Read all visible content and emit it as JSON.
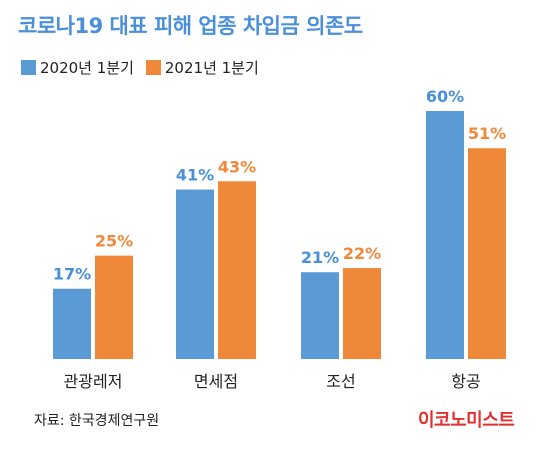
{
  "title": "코로나19 대표 피해 업종 차입금 의존도",
  "source": "자료: 한국경제연구원",
  "brand": "이코노미스트",
  "colors": {
    "series1": "#5b9bd5",
    "series2": "#f0883a",
    "label1": "#4a90d9",
    "label2": "#f0883a",
    "axis_text": "#222222"
  },
  "chart_data": {
    "type": "bar",
    "title": "코로나19 대표 피해 업종 차입금 의존도",
    "categories": [
      "관광레저",
      "면세점",
      "조선",
      "항공"
    ],
    "series": [
      {
        "name": "2020년 1분기",
        "values": [
          17,
          41,
          21,
          60
        ],
        "labels": [
          "17%",
          "41%",
          "21%",
          "60%"
        ]
      },
      {
        "name": "2021년 1분기",
        "values": [
          25,
          43,
          22,
          51
        ],
        "labels": [
          "25%",
          "43%",
          "22%",
          "51%"
        ]
      }
    ],
    "unit": "%",
    "ylim": [
      0,
      60
    ],
    "grid": false,
    "legend": "top-left"
  }
}
